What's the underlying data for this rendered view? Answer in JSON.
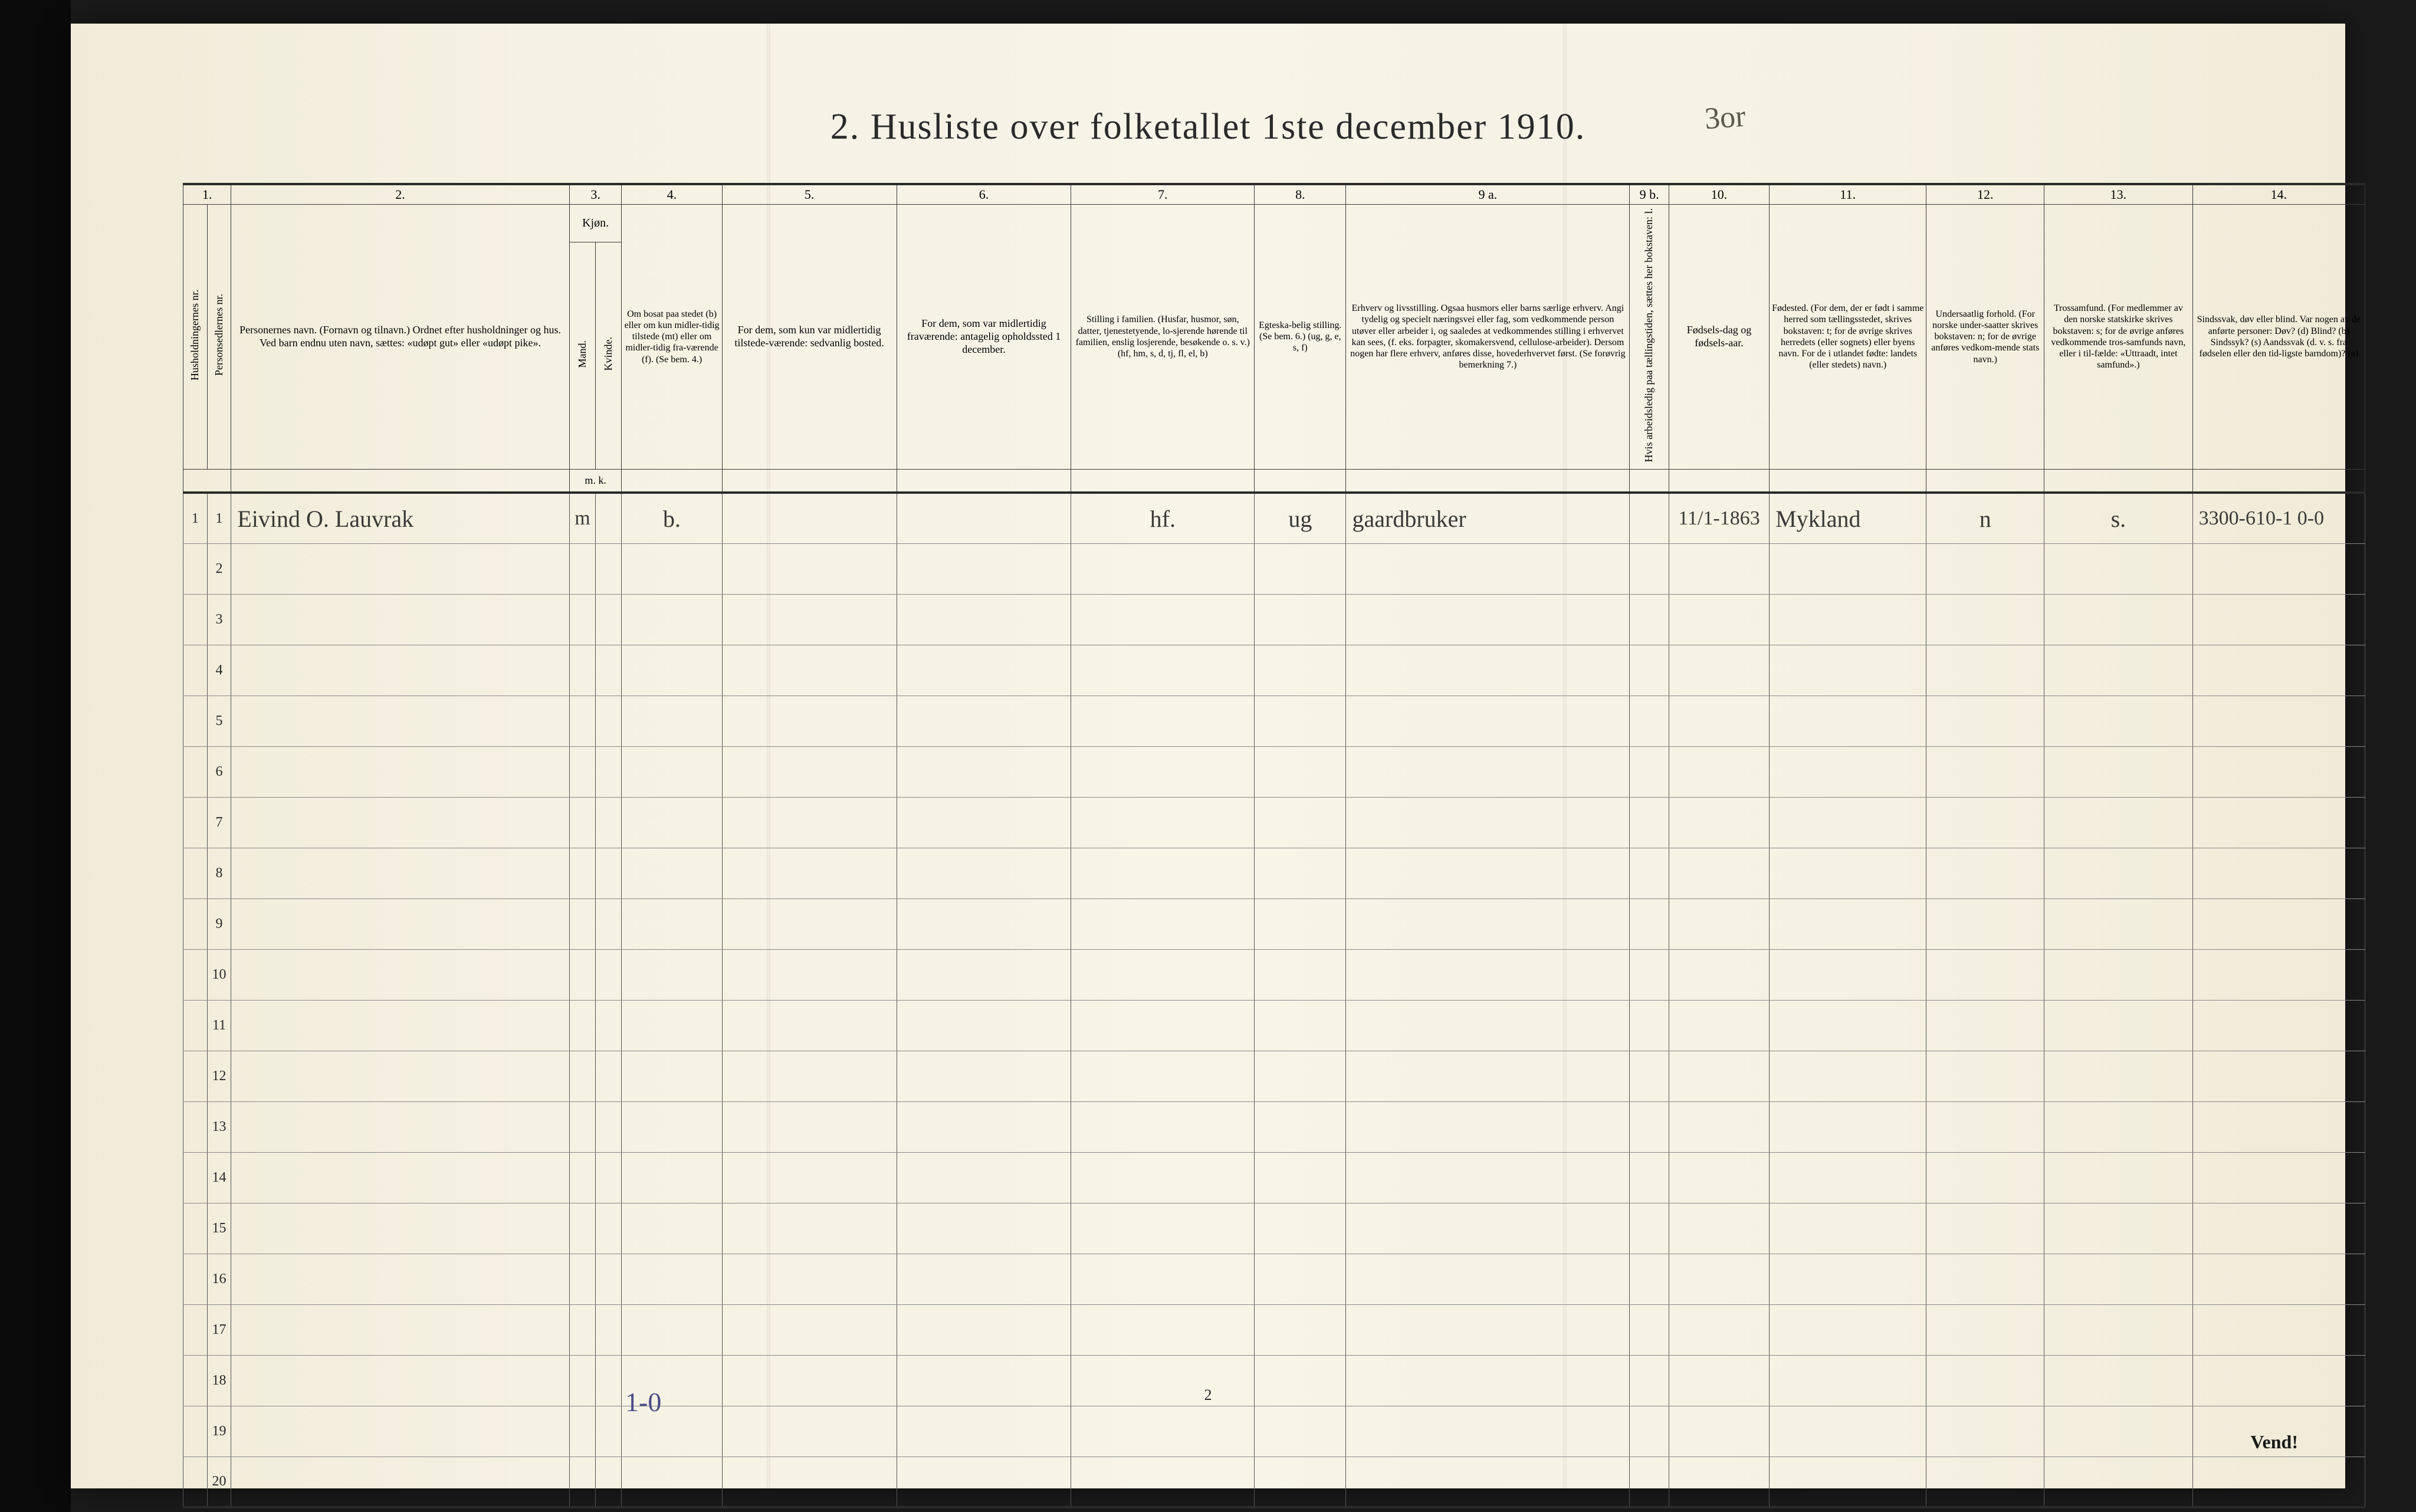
{
  "title": "2.  Husliste over folketallet 1ste december 1910.",
  "top_annotation": "3or",
  "page_number": "2",
  "vend": "Vend!",
  "bottom_annotation": "1-0",
  "colors": {
    "paper": "#f5f1e3",
    "ink": "#2a2a2a",
    "rule": "#3a3a3a",
    "handwriting": "#3a3a36",
    "pencil": "#4a4a88"
  },
  "columns": {
    "nums": [
      "1.",
      "2.",
      "3.",
      "4.",
      "5.",
      "6.",
      "7.",
      "8.",
      "9 a.",
      "9 b.",
      "10.",
      "11.",
      "12.",
      "13.",
      "14."
    ],
    "widths_pct": [
      1.1,
      1.1,
      15.5,
      1.2,
      1.2,
      4.6,
      8.0,
      8.0,
      8.4,
      4.2,
      13.0,
      1.8,
      4.6,
      7.2,
      5.4,
      6.8,
      7.9
    ],
    "c1a": "Husholdningernes nr.",
    "c1b": "Personsedlernes nr.",
    "c2": "Personernes navn.\n(Fornavn og tilnavn.)\nOrdnet efter husholdninger og hus.\nVed barn endnu uten navn, sættes: «udøpt gut»\neller «udøpt pike».",
    "c3": "Kjøn.",
    "c3a": "Mand.",
    "c3b": "Kvinde.",
    "c3foot": "m.  k.",
    "c4": "Om bosat paa stedet (b) eller om kun midler-tidig tilstede (mt) eller om midler-tidig fra-værende (f).\n(Se bem. 4.)",
    "c5": "For dem, som kun var midlertidig tilstede-værende:\n\nsedvanlig bosted.",
    "c6": "For dem, som var midlertidig fraværende:\n\nantagelig opholdssted 1 december.",
    "c7": "Stilling i familien.\n(Husfar, husmor, søn, datter, tjenestetyende, lo-sjerende hørende til familien, enslig losjerende, besøkende o. s. v.)\n(hf, hm, s, d, tj, fl, el, b)",
    "c8": "Egteska-belig stilling.\n(Se bem. 6.)\n(ug, g, e, s, f)",
    "c9a": "Erhverv og livsstilling.\nOgsaa husmors eller barns særlige erhverv.\nAngi tydelig og specielt næringsvei eller fag, som vedkommende person utøver eller arbeider i, og saaledes at vedkommendes stilling i erhvervet kan sees, (f. eks. forpagter, skomakersvend, cellulose-arbeider). Dersom nogen har flere erhverv, anføres disse, hovederhvervet først.\n(Se forøvrig bemerkning 7.)",
    "c9b": "Hvis arbeidsledig paa tællingstiden, sættes her bokstaven: l.",
    "c10": "Fødsels-dag og fødsels-aar.",
    "c11": "Fødested.\n(For dem, der er født i samme herred som tællingsstedet, skrives bokstaven: t; for de øvrige skrives herredets (eller sognets) eller byens navn.\nFor de i utlandet fødte: landets (eller stedets) navn.)",
    "c12": "Undersaatlig forhold.\n(For norske under-saatter skrives bokstaven: n; for de øvrige anføres vedkom-mende stats navn.)",
    "c13": "Trossamfund.\n(For medlemmer av den norske statskirke skrives bokstaven: s; for de øvrige anføres vedkommende tros-samfunds navn, eller i til-fælde: «Uttraadt, intet samfund».)",
    "c14": "Sindssvak, døv eller blind.\nVar nogen av de anførte personer:\nDøv?        (d)\nBlind?      (b)\nSindssyk?  (s)\nAandssvak (d. v. s. fra fødselen eller den tid-ligste barndom)? (a)"
  },
  "rows": [
    {
      "hh": "1",
      "pn": "1",
      "name": "Eivind O. Lauvrak",
      "sex_m": "m",
      "sex_k": "",
      "bosat": "b.",
      "c5": "",
      "c6": "",
      "stilling": "hf.",
      "egte": "ug",
      "erhverv": "gaardbruker",
      "c9b": "",
      "fodsel": "11/1-1863",
      "fodested": "Mykland",
      "undersaat": "n",
      "tros": "s.",
      "c14": "3300-610-1  0-0"
    }
  ],
  "row_numbers": [
    "1",
    "2",
    "3",
    "4",
    "5",
    "6",
    "7",
    "8",
    "9",
    "10",
    "11",
    "12",
    "13",
    "14",
    "15",
    "16",
    "17",
    "18",
    "19",
    "20"
  ]
}
